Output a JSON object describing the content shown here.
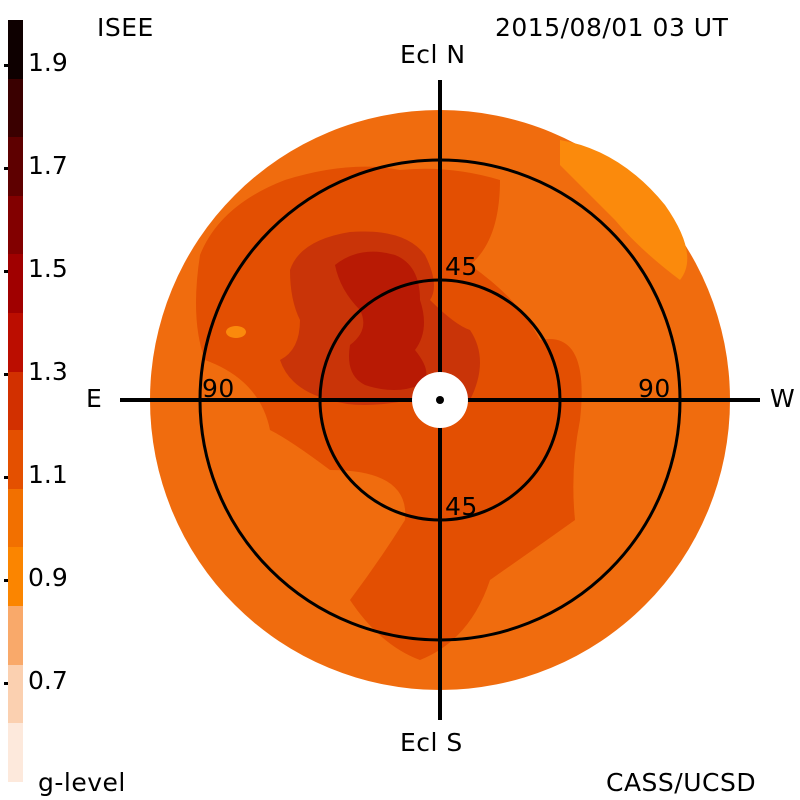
{
  "header": {
    "left_label": "ISEE",
    "date_label": "2015/08/01 03 UT",
    "credit": "CASS/UCSD",
    "colorbar_title": "g-level"
  },
  "axes": {
    "north": "Ecl N",
    "south": "Ecl S",
    "east": "E",
    "west": "W",
    "ring_inner_top": "45",
    "ring_inner_bottom": "45",
    "ring_outer_left": "90",
    "ring_outer_right": "90"
  },
  "colorbar": {
    "ticks": [
      "1.9",
      "1.7",
      "1.5",
      "1.3",
      "1.1",
      "0.9",
      "0.7"
    ],
    "colors": [
      "#0e0000",
      "#3a0000",
      "#5e0000",
      "#820000",
      "#a00000",
      "#bb0d00",
      "#d23000",
      "#e45000",
      "#f27000",
      "#fb8500",
      "#f9a96a",
      "#fbd0b0",
      "#fde9dc"
    ]
  },
  "map_colors": {
    "base": "#f06c0e",
    "mid": "#e34f02",
    "dark": "#c93408",
    "darkest": "#b81a04",
    "light": "#fb8a0c"
  }
}
